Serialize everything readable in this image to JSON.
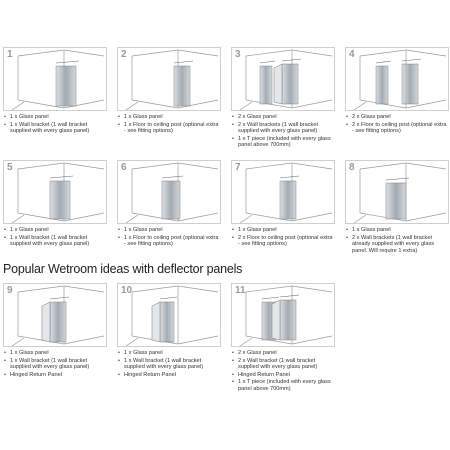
{
  "items": [
    {
      "number": "1",
      "bullets": [
        "1 x Glass panel",
        "1 x Wall bracket (1 wall bracket supplied with every glass panel)"
      ]
    },
    {
      "number": "2",
      "bullets": [
        "1 x Glass panel",
        "1 x Floor to ceiling post (optional extra - see fitting options)"
      ]
    },
    {
      "number": "3",
      "bullets": [
        "2 x Glass panel",
        "2 x Wall brackets (1 wall bracket supplied with every glass panel)",
        "1 x T piece (included with every glass panel above 700mm)"
      ]
    },
    {
      "number": "4",
      "bullets": [
        "2 x Glass panel",
        "2 x Floor to ceiling post (optional extra - see fitting options)"
      ]
    },
    {
      "number": "5",
      "bullets": [
        "1 x Glass panel",
        "1 x Wall bracket (1 wall bracket supplied with every glass panel)"
      ]
    },
    {
      "number": "6",
      "bullets": [
        "1 x Glass panel",
        "1 x Floor to ceiling post (optional extra - see fitting options)"
      ]
    },
    {
      "number": "7",
      "bullets": [
        "1 x Glass panel",
        "2 x Floor to ceiling post (optional extra - see fitting options)"
      ]
    },
    {
      "number": "8",
      "bullets": [
        "1 x Glass panel",
        "2 x Wall brackets (1 wall bracket already supplied with every glass panel. Will require 1 extra)"
      ]
    },
    {
      "number": "9",
      "bullets": [
        "1 x Glass panel",
        "1 x Wall bracket (1 wall bracket supplied with every glass panel)",
        "Hinged Return Panel"
      ]
    },
    {
      "number": "10",
      "bullets": [
        "1 x Glass panel",
        "1 x Wall bracket (1 wall bracket supplied with every glass panel)",
        "Hinged Return Panel"
      ]
    },
    {
      "number": "11",
      "bullets": [
        "2 x Glass panel",
        "2 x Wall bracket (1 wall bracket supplied with every glass panel)",
        "Hinged Return Panel",
        "1 x T piece (included with every glass panel above 700mm)"
      ]
    }
  ],
  "heading": "Popular Wetroom ideas with deflector panels"
}
